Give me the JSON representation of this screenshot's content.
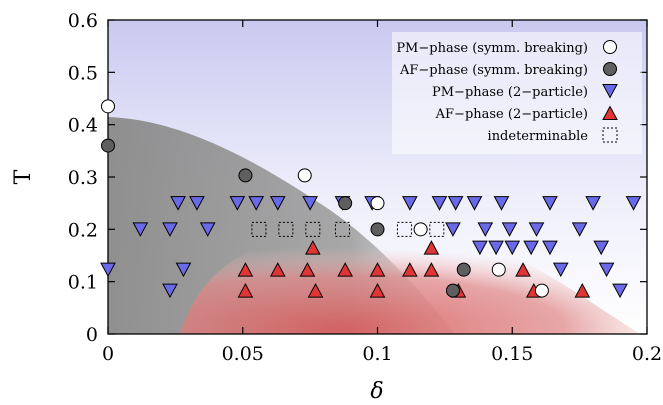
{
  "chart_data": {
    "type": "scatter",
    "xlabel": "δ",
    "ylabel": "T",
    "xlim": [
      0,
      0.2
    ],
    "ylim": [
      0,
      0.6
    ],
    "xticks": [
      "0",
      "0.05",
      "0.1",
      "0.15",
      "0.2"
    ],
    "yticks": [
      "0",
      "0.1",
      "0.2",
      "0.3",
      "0.4",
      "0.5",
      "0.6"
    ],
    "legend_position": "top-right",
    "grid": false,
    "series": [
      {
        "name": "PM−phase (symm. breaking)",
        "marker": "circle",
        "fill": "#ffffff",
        "stroke": "#000000",
        "points": [
          [
            0.0,
            0.435
          ],
          [
            0.073,
            0.303
          ],
          [
            0.1,
            0.25
          ],
          [
            0.116,
            0.2
          ],
          [
            0.145,
            0.123
          ],
          [
            0.161,
            0.083
          ]
        ]
      },
      {
        "name": "AF−phase (symm. breaking)",
        "marker": "circle",
        "fill": "#5f5f5f",
        "stroke": "#000000",
        "points": [
          [
            0.0,
            0.36
          ],
          [
            0.051,
            0.303
          ],
          [
            0.088,
            0.25
          ],
          [
            0.1,
            0.2
          ],
          [
            0.132,
            0.123
          ],
          [
            0.128,
            0.083
          ]
        ]
      },
      {
        "name": "PM−phase (2−particle)",
        "marker": "triangle-down",
        "fill": "#6a6ae8",
        "stroke": "#000000",
        "points": [
          [
            0.0,
            0.123
          ],
          [
            0.012,
            0.2
          ],
          [
            0.023,
            0.2
          ],
          [
            0.023,
            0.083
          ],
          [
            0.026,
            0.25
          ],
          [
            0.028,
            0.123
          ],
          [
            0.033,
            0.25
          ],
          [
            0.037,
            0.2
          ],
          [
            0.048,
            0.25
          ],
          [
            0.055,
            0.25
          ],
          [
            0.063,
            0.25
          ],
          [
            0.075,
            0.25
          ],
          [
            0.087,
            0.25
          ],
          [
            0.098,
            0.25
          ],
          [
            0.112,
            0.25
          ],
          [
            0.123,
            0.25
          ],
          [
            0.129,
            0.25
          ],
          [
            0.136,
            0.25
          ],
          [
            0.146,
            0.25
          ],
          [
            0.164,
            0.25
          ],
          [
            0.18,
            0.25
          ],
          [
            0.195,
            0.25
          ],
          [
            0.128,
            0.2
          ],
          [
            0.14,
            0.2
          ],
          [
            0.149,
            0.2
          ],
          [
            0.159,
            0.2
          ],
          [
            0.175,
            0.2
          ],
          [
            0.138,
            0.165
          ],
          [
            0.144,
            0.165
          ],
          [
            0.15,
            0.165
          ],
          [
            0.157,
            0.165
          ],
          [
            0.164,
            0.165
          ],
          [
            0.183,
            0.165
          ],
          [
            0.168,
            0.123
          ],
          [
            0.185,
            0.123
          ],
          [
            0.19,
            0.083
          ]
        ]
      },
      {
        "name": "AF−phase (2−particle)",
        "marker": "triangle-up",
        "fill": "#e03535",
        "stroke": "#000000",
        "points": [
          [
            0.051,
            0.123
          ],
          [
            0.051,
            0.083
          ],
          [
            0.063,
            0.123
          ],
          [
            0.074,
            0.123
          ],
          [
            0.076,
            0.165
          ],
          [
            0.077,
            0.083
          ],
          [
            0.088,
            0.123
          ],
          [
            0.1,
            0.123
          ],
          [
            0.1,
            0.083
          ],
          [
            0.112,
            0.123
          ],
          [
            0.12,
            0.165
          ],
          [
            0.12,
            0.123
          ],
          [
            0.13,
            0.083
          ],
          [
            0.154,
            0.123
          ],
          [
            0.158,
            0.083
          ],
          [
            0.176,
            0.083
          ]
        ]
      },
      {
        "name": "indeterminable",
        "marker": "square-dashed",
        "fill": "none",
        "stroke": "#000000",
        "points": [
          [
            0.056,
            0.2
          ],
          [
            0.066,
            0.2
          ],
          [
            0.076,
            0.2
          ],
          [
            0.087,
            0.2
          ],
          [
            0.11,
            0.2
          ],
          [
            0.122,
            0.2
          ]
        ]
      }
    ],
    "regions": [
      {
        "phase": "AF",
        "color": "#8c8c8c"
      },
      {
        "phase": "PM",
        "color": "#d9d9f4"
      },
      {
        "phase": "AF-2-particle",
        "color": "#d97a7a"
      }
    ]
  }
}
